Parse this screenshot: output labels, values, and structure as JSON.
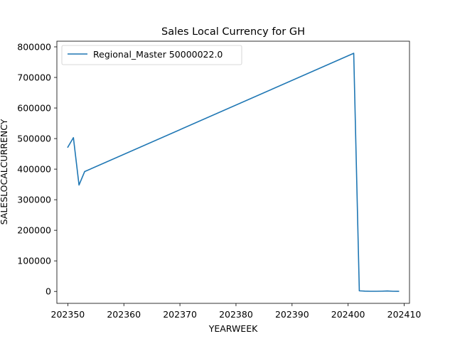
{
  "chart_data": {
    "type": "line",
    "title": "Sales Local Currency for GH",
    "xlabel": "YEARWEEK",
    "ylabel": "SALESLOCALCURRENCY",
    "xlim": [
      202348.05,
      202410.95
    ],
    "ylim": [
      -38977,
      818516
    ],
    "x_ticks": [
      202350,
      202360,
      202370,
      202380,
      202390,
      202400,
      202410
    ],
    "y_ticks": [
      0,
      100000,
      200000,
      300000,
      400000,
      500000,
      600000,
      700000,
      800000
    ],
    "x_tick_labels": [
      "202350",
      "202360",
      "202370",
      "202380",
      "202390",
      "202400",
      "202410"
    ],
    "y_tick_labels": [
      "0",
      "100000",
      "200000",
      "300000",
      "400000",
      "500000",
      "600000",
      "700000",
      "800000"
    ],
    "grid": false,
    "legend_position": "top-left",
    "series": [
      {
        "name": "Regional_Master 50000022.0",
        "color": "#1f77b4",
        "x": [
          202350,
          202351,
          202352,
          202353,
          202401,
          202402,
          202403,
          202404,
          202405,
          202406,
          202407,
          202408,
          202409
        ],
        "y": [
          472000,
          503000,
          348000,
          392000,
          779000,
          2000,
          1000,
          500,
          500,
          800,
          1500,
          500,
          300
        ]
      }
    ]
  }
}
